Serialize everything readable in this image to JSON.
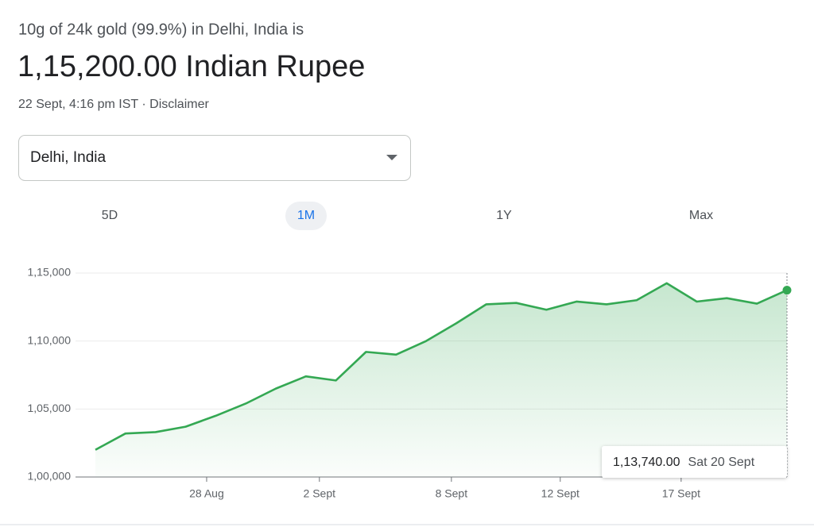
{
  "header": {
    "intro": "10g of 24k gold (99.9%) in Delhi, India is",
    "price": "1,15,200.00 Indian Rupee",
    "timestamp": "22 Sept, 4:16 pm IST",
    "separator": "·",
    "disclaimer": "Disclaimer"
  },
  "dropdown": {
    "label": "Delhi, India"
  },
  "tabs": {
    "items": [
      "5D",
      "1M",
      "1Y",
      "Max"
    ],
    "selected": 1
  },
  "chart_data": {
    "type": "area",
    "x": [
      0,
      1,
      2,
      3,
      4,
      5,
      6,
      7,
      8,
      9,
      10,
      11,
      12,
      13,
      14,
      15,
      16,
      17,
      18,
      19,
      20,
      21,
      22,
      23
    ],
    "series": [
      {
        "color": "#34a853",
        "values": [
          102000,
          103200,
          103300,
          103700,
          104500,
          105400,
          106500,
          107400,
          107100,
          109200,
          109000,
          110000,
          111300,
          112700,
          112800,
          112300,
          112900,
          112700,
          113000,
          114250,
          112900,
          113150,
          112750,
          113740
        ]
      }
    ],
    "xlim": [
      0,
      23
    ],
    "xticks": [
      {
        "value": 3.7,
        "label": "28 Aug"
      },
      {
        "value": 7.45,
        "label": "2 Sept"
      },
      {
        "value": 11.84,
        "label": "8 Sept"
      },
      {
        "value": 15.46,
        "label": "12 Sept"
      },
      {
        "value": 19.48,
        "label": "17 Sept"
      }
    ],
    "ylim": [
      100000,
      115000
    ],
    "yticks": [
      {
        "value": 100000,
        "label": "1,00,000"
      },
      {
        "value": 105000,
        "label": "1,05,000"
      },
      {
        "value": 110000,
        "label": "1,10,000"
      },
      {
        "value": 115000,
        "label": "1,15,000"
      }
    ],
    "grid": true,
    "tooltip": {
      "value": "1,13,740.00",
      "date": "Sat 20 Sept"
    }
  }
}
